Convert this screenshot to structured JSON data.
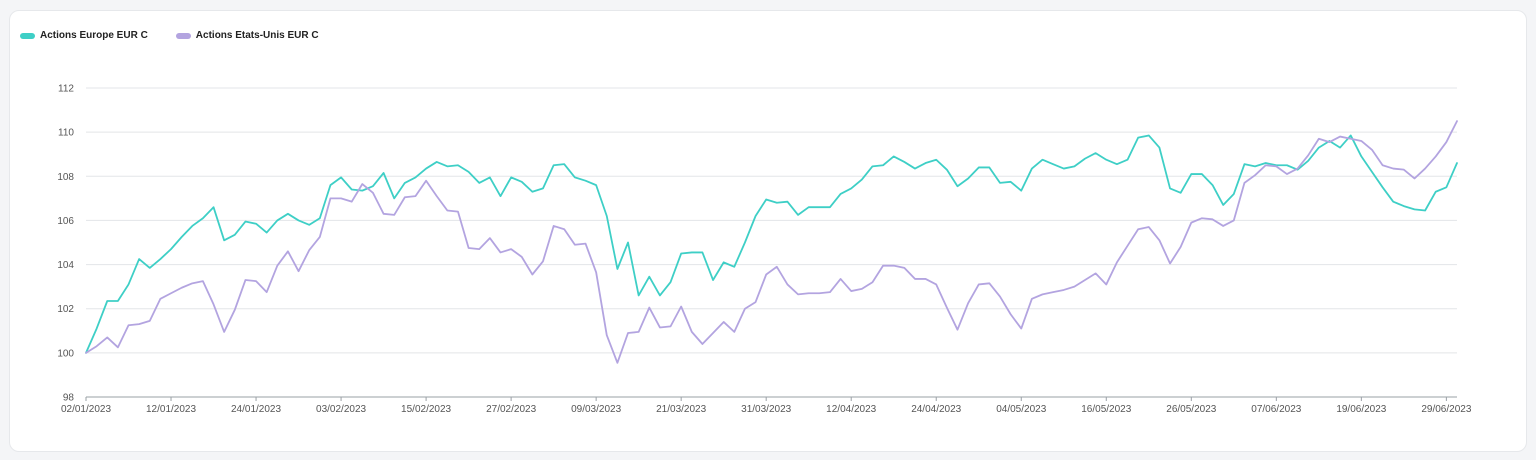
{
  "chart_data": {
    "type": "line",
    "ylim": [
      98,
      112
    ],
    "y_ticks": [
      98,
      100,
      102,
      104,
      106,
      108,
      110,
      112
    ],
    "x_tick_labels": [
      "02/01/2023",
      "12/01/2023",
      "24/01/2023",
      "03/02/2023",
      "15/02/2023",
      "27/02/2023",
      "09/03/2023",
      "21/03/2023",
      "31/03/2023",
      "12/04/2023",
      "24/04/2023",
      "04/05/2023",
      "16/05/2023",
      "26/05/2023",
      "07/06/2023",
      "19/06/2023",
      "29/06/2023"
    ],
    "x_tick_positions": [
      0,
      8,
      16,
      24,
      32,
      40,
      48,
      56,
      64,
      72,
      80,
      88,
      96,
      104,
      112,
      120,
      128
    ],
    "x_count": 130,
    "legend_position": "top-left",
    "grid": true,
    "series": [
      {
        "name": "Actions Europe EUR C",
        "color": "#3ecfc6",
        "values": [
          100.0,
          101.1,
          102.35,
          102.35,
          103.1,
          104.25,
          103.85,
          104.25,
          104.7,
          105.25,
          105.75,
          106.1,
          106.6,
          105.1,
          105.35,
          105.95,
          105.85,
          105.45,
          106.0,
          106.3,
          106.0,
          105.8,
          106.1,
          107.6,
          107.95,
          107.4,
          107.35,
          107.55,
          108.15,
          107.0,
          107.7,
          107.95,
          108.35,
          108.65,
          108.45,
          108.5,
          108.2,
          107.7,
          107.95,
          107.1,
          107.95,
          107.75,
          107.3,
          107.45,
          108.5,
          108.55,
          107.95,
          107.8,
          107.6,
          106.2,
          103.8,
          105.0,
          102.6,
          103.45,
          102.6,
          103.2,
          104.5,
          104.55,
          104.55,
          103.3,
          104.1,
          103.9,
          105.0,
          106.2,
          106.95,
          106.8,
          106.85,
          106.25,
          106.6,
          106.6,
          106.6,
          107.2,
          107.45,
          107.85,
          108.45,
          108.5,
          108.9,
          108.65,
          108.35,
          108.6,
          108.75,
          108.3,
          107.55,
          107.9,
          108.4,
          108.4,
          107.7,
          107.75,
          107.35,
          108.35,
          108.75,
          108.55,
          108.35,
          108.45,
          108.8,
          109.05,
          108.75,
          108.55,
          108.75,
          109.75,
          109.85,
          109.3,
          107.45,
          107.25,
          108.1,
          108.1,
          107.6,
          106.7,
          107.2,
          108.55,
          108.45,
          108.6,
          108.5,
          108.5,
          108.3,
          108.7,
          109.3,
          109.6,
          109.3,
          109.85,
          108.9,
          108.2,
          107.5,
          106.85,
          106.65,
          106.5,
          106.45,
          107.3,
          107.5,
          108.6
        ]
      },
      {
        "name": "Actions Etats-Unis EUR C",
        "color": "#b3a4e0",
        "values": [
          100.0,
          100.3,
          100.7,
          100.25,
          101.25,
          101.3,
          101.45,
          102.45,
          102.7,
          102.95,
          103.15,
          103.25,
          102.2,
          100.95,
          101.95,
          103.3,
          103.25,
          102.75,
          103.95,
          104.6,
          103.7,
          104.65,
          105.25,
          107.0,
          107.0,
          106.85,
          107.65,
          107.25,
          106.3,
          106.25,
          107.05,
          107.1,
          107.8,
          107.1,
          106.45,
          106.4,
          104.75,
          104.7,
          105.2,
          104.55,
          104.7,
          104.35,
          103.55,
          104.15,
          105.75,
          105.6,
          104.9,
          104.95,
          103.65,
          100.8,
          99.55,
          100.9,
          100.95,
          102.05,
          101.15,
          101.2,
          102.1,
          100.95,
          100.4,
          100.9,
          101.4,
          100.95,
          102.0,
          102.3,
          103.55,
          103.9,
          103.1,
          102.65,
          102.7,
          102.7,
          102.75,
          103.35,
          102.8,
          102.9,
          103.2,
          103.95,
          103.95,
          103.85,
          103.35,
          103.35,
          103.1,
          102.05,
          101.05,
          102.25,
          103.1,
          103.15,
          102.55,
          101.75,
          101.1,
          102.45,
          102.65,
          102.75,
          102.85,
          103.0,
          103.3,
          103.6,
          103.1,
          104.1,
          104.85,
          105.6,
          105.7,
          105.1,
          104.05,
          104.8,
          105.9,
          106.1,
          106.05,
          105.75,
          106.0,
          107.7,
          108.05,
          108.5,
          108.45,
          108.1,
          108.35,
          108.95,
          109.7,
          109.55,
          109.8,
          109.7,
          109.6,
          109.2,
          108.5,
          108.35,
          108.3,
          107.9,
          108.35,
          108.9,
          109.55,
          110.5
        ]
      }
    ]
  }
}
